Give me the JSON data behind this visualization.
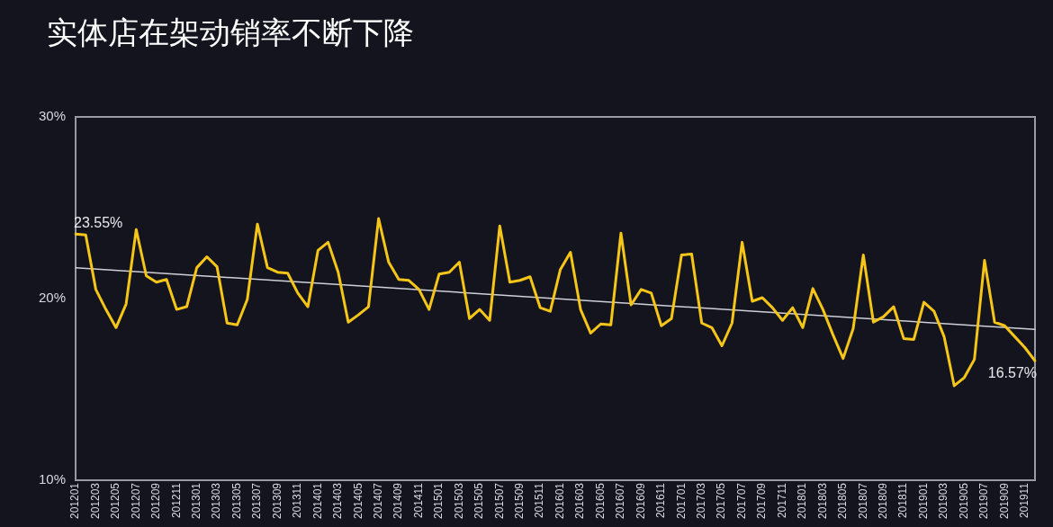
{
  "chart_data": {
    "type": "line",
    "title": "实体店在架动销率不断下降",
    "categories": [
      "201201",
      null,
      "201203",
      null,
      "201205",
      null,
      "201207",
      null,
      "201209",
      null,
      "201211",
      null,
      "201301",
      null,
      "201303",
      null,
      "201305",
      null,
      "201307",
      null,
      "201309",
      null,
      "201311",
      null,
      "201401",
      null,
      "201403",
      null,
      "201405",
      null,
      "201407",
      null,
      "201409",
      null,
      "201411",
      null,
      "201501",
      null,
      "201503",
      null,
      "201505",
      null,
      "201507",
      null,
      "201509",
      null,
      "201511",
      null,
      "201601",
      null,
      "201603",
      null,
      "201605",
      null,
      "201607",
      null,
      "201609",
      null,
      "201611",
      null,
      "201701",
      null,
      "201703",
      null,
      "201705",
      null,
      "201707",
      null,
      "201709",
      null,
      "201711",
      null,
      "201801",
      null,
      "201803",
      null,
      "201805",
      null,
      "201807",
      null,
      "201809",
      null,
      "201811",
      null,
      "201901",
      null,
      "201903",
      null,
      "201905",
      null,
      "201907",
      null,
      "201909",
      null,
      "201911",
      null
    ],
    "series": [
      {
        "color": "#f5c518",
        "values": [
          23.55,
          23.5,
          20.5,
          19.4,
          18.4,
          19.7,
          23.8,
          21.25,
          20.9,
          21.05,
          19.4,
          19.55,
          21.7,
          22.3,
          21.75,
          18.65,
          18.55,
          19.95,
          24.1,
          21.7,
          21.45,
          21.4,
          20.3,
          19.55,
          22.65,
          23.1,
          21.45,
          18.7,
          19.1,
          19.55,
          24.4,
          22.0,
          21.05,
          21.0,
          20.5,
          19.4,
          21.35,
          21.45,
          22.0,
          18.9,
          19.4,
          18.8,
          24.0,
          20.9,
          21.0,
          21.2,
          19.5,
          19.3,
          21.6,
          22.55,
          19.4,
          18.1,
          18.6,
          18.55,
          23.6,
          19.65,
          20.5,
          20.3,
          18.5,
          18.9,
          22.4,
          22.45,
          18.65,
          18.4,
          17.4,
          18.65,
          23.1,
          19.85,
          20.05,
          19.5,
          18.8,
          19.5,
          18.4,
          20.55,
          19.4,
          18.0,
          16.7,
          18.35,
          22.4,
          18.7,
          19.0,
          19.55,
          17.8,
          17.75,
          19.8,
          19.3,
          17.9,
          15.2,
          15.65,
          16.65,
          22.1,
          18.7,
          18.5,
          17.9,
          17.3,
          16.57
        ],
        "value_labels": [
          "23.55%",
          null,
          null,
          null,
          null,
          null,
          null,
          null,
          null,
          null,
          null,
          null,
          null,
          null,
          null,
          null,
          null,
          null,
          null,
          null,
          null,
          null,
          null,
          null,
          null,
          null,
          null,
          null,
          null,
          null,
          null,
          null,
          null,
          null,
          null,
          null,
          null,
          null,
          null,
          null,
          null,
          null,
          null,
          null,
          null,
          null,
          null,
          null,
          null,
          null,
          null,
          null,
          null,
          null,
          null,
          null,
          null,
          null,
          null,
          null,
          null,
          null,
          null,
          null,
          null,
          null,
          null,
          null,
          null,
          null,
          null,
          null,
          null,
          null,
          null,
          null,
          null,
          null,
          null,
          null,
          null,
          null,
          null,
          null,
          null,
          null,
          null,
          null,
          null,
          null,
          null,
          null,
          null,
          null,
          null,
          "16.57%"
        ]
      },
      {
        "type": "line",
        "color": "#d0d0d8",
        "values": [
          21.7,
          null,
          null,
          null,
          null,
          null,
          null,
          null,
          null,
          null,
          null,
          null,
          null,
          null,
          null,
          null,
          null,
          null,
          null,
          null,
          null,
          null,
          null,
          null,
          null,
          null,
          null,
          null,
          null,
          null,
          null,
          null,
          null,
          null,
          null,
          null,
          null,
          null,
          null,
          null,
          null,
          null,
          null,
          null,
          null,
          null,
          null,
          null,
          null,
          null,
          null,
          null,
          null,
          null,
          null,
          null,
          null,
          null,
          null,
          null,
          null,
          null,
          null,
          null,
          null,
          null,
          null,
          null,
          null,
          null,
          null,
          null,
          null,
          null,
          null,
          null,
          null,
          null,
          null,
          null,
          null,
          null,
          null,
          null,
          null,
          null,
          null,
          null,
          null,
          null,
          null,
          null,
          null,
          null,
          null,
          18.3
        ]
      }
    ],
    "ylim": [
      10,
      30
    ],
    "yticks": [
      {
        "value": 10,
        "label": "10%"
      },
      {
        "value": 20,
        "label": "20%"
      },
      {
        "value": 30,
        "label": "30%"
      }
    ],
    "grid": false,
    "legend": false,
    "marker": "none",
    "line_style": "solid"
  }
}
